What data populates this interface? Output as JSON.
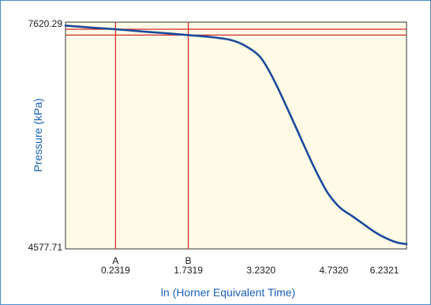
{
  "chart_data": {
    "type": "line",
    "title": "",
    "xlabel": "ln (Horner Equivalent Time)",
    "ylabel": "Pressure (kPa)",
    "xlim": [
      -0.8,
      6.2321
    ],
    "ylim": [
      4577.71,
      7620.29
    ],
    "x_ticks": [
      {
        "letter": "A",
        "value": "0.2319"
      },
      {
        "letter": "B",
        "value": "1.7319"
      },
      {
        "letter": "",
        "value": "3.2320"
      },
      {
        "letter": "",
        "value": "4.7320"
      },
      {
        "letter": "",
        "value": "6.2321"
      }
    ],
    "y_ticks": [
      "7620.29",
      "4577.71"
    ],
    "series": [
      {
        "color": "#1a4a9a",
        "points": [
          [
            -0.8,
            7671
          ],
          [
            -0.3,
            7645
          ],
          [
            0.2319,
            7620
          ],
          [
            0.8,
            7588
          ],
          [
            1.3,
            7562
          ],
          [
            1.7319,
            7538
          ],
          [
            2.2,
            7510
          ],
          [
            2.6,
            7470
          ],
          [
            2.9,
            7390
          ],
          [
            3.2,
            7240
          ],
          [
            3.4,
            7030
          ],
          [
            3.6,
            6760
          ],
          [
            3.85,
            6390
          ],
          [
            4.1,
            6010
          ],
          [
            4.35,
            5640
          ],
          [
            4.6,
            5320
          ],
          [
            4.85,
            5110
          ],
          [
            5.1,
            4990
          ],
          [
            5.35,
            4870
          ],
          [
            5.6,
            4750
          ],
          [
            5.85,
            4660
          ],
          [
            6.05,
            4610
          ],
          [
            6.2321,
            4590
          ]
        ]
      }
    ],
    "horizontal_lines": [
      {
        "y": 7620.29,
        "color": "#d42a2a"
      },
      {
        "y": 7538,
        "color": "#d42a2a"
      }
    ],
    "vertical_lines": [
      {
        "x": 0.2319,
        "color": "#d42a2a"
      },
      {
        "x": 1.7319,
        "color": "#d42a2a"
      }
    ],
    "plot_background": "#fffbe6",
    "grid": false
  }
}
